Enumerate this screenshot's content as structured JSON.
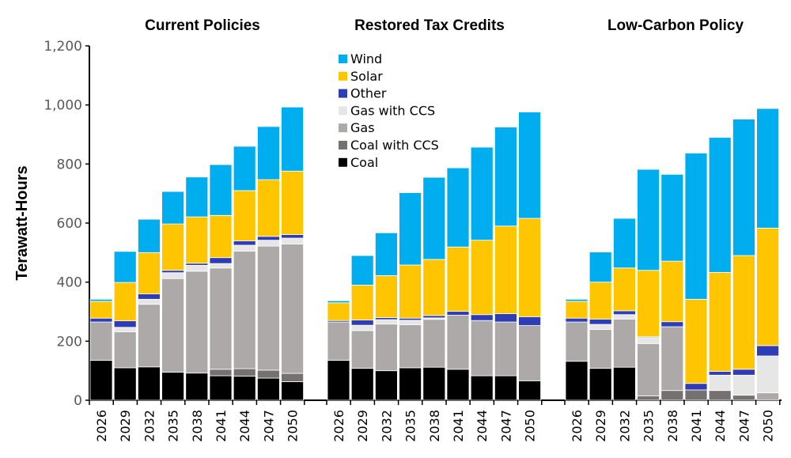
{
  "chart_data": {
    "type": "bar",
    "stacked": true,
    "ylabel": "Terawatt-Hours",
    "ylim": [
      0,
      1200
    ],
    "yticks": [
      0,
      200,
      400,
      600,
      800,
      1000,
      1200
    ],
    "ytick_labels": [
      "0",
      "200",
      "400",
      "600",
      "800",
      "1,000",
      "1,200"
    ],
    "grid": false,
    "legend_position": "top-center (inside middle panel)",
    "categories": [
      "2026",
      "2029",
      "2032",
      "2035",
      "2038",
      "2041",
      "2044",
      "2047",
      "2050"
    ],
    "series_order": [
      "Coal",
      "Coal with CCS",
      "Gas",
      "Gas with CCS",
      "Other",
      "Solar",
      "Wind"
    ],
    "legend": [
      {
        "name": "Wind",
        "color": "#00AEEF"
      },
      {
        "name": "Solar",
        "color": "#FFC600"
      },
      {
        "name": "Other",
        "color": "#2E3DB5"
      },
      {
        "name": "Gas with CCS",
        "color": "#E6E6E6"
      },
      {
        "name": "Gas",
        "color": "#ADA9A9"
      },
      {
        "name": "Coal with CCS",
        "color": "#767171"
      },
      {
        "name": "Coal",
        "color": "#000000"
      }
    ],
    "panels": [
      {
        "title": "Current Policies",
        "series": [
          {
            "name": "Coal",
            "values": [
              135,
              110,
              113,
              95,
              92,
              83,
              82,
              75,
              63
            ]
          },
          {
            "name": "Coal with CCS",
            "values": [
              0,
              0,
              0,
              0,
              0,
              22,
              25,
              27,
              28
            ]
          },
          {
            "name": "Gas",
            "values": [
              130,
              122,
              212,
              317,
              345,
              343,
              398,
              420,
              438
            ]
          },
          {
            "name": "Gas with CCS",
            "values": [
              0,
              15,
              17,
              20,
              20,
              15,
              20,
              20,
              20
            ]
          },
          {
            "name": "Other",
            "values": [
              13,
              22,
              18,
              8,
              7,
              20,
              15,
              13,
              12
            ]
          },
          {
            "name": "Solar",
            "values": [
              57,
              130,
              140,
              157,
              157,
              143,
              170,
              192,
              215
            ]
          },
          {
            "name": "Wind",
            "values": [
              7,
              105,
              113,
              110,
              135,
              172,
              150,
              180,
              217
            ]
          }
        ]
      },
      {
        "title": "Restored Tax Credits",
        "series": [
          {
            "name": "Coal",
            "values": [
              135,
              108,
              100,
              110,
              112,
              105,
              83,
              83,
              66
            ]
          },
          {
            "name": "Coal with CCS",
            "values": [
              0,
              0,
              0,
              0,
              0,
              0,
              0,
              0,
              0
            ]
          },
          {
            "name": "Gas",
            "values": [
              130,
              128,
              158,
              146,
              162,
              183,
              187,
              182,
              187
            ]
          },
          {
            "name": "Gas with CCS",
            "values": [
              0,
              18,
              15,
              15,
              5,
              0,
              0,
              0,
              0
            ]
          },
          {
            "name": "Other",
            "values": [
              5,
              18,
              7,
              7,
              8,
              13,
              20,
              28,
              30
            ]
          },
          {
            "name": "Solar",
            "values": [
              60,
              118,
              142,
              180,
              190,
              218,
              252,
              297,
              333
            ]
          },
          {
            "name": "Wind",
            "values": [
              7,
              100,
              145,
              245,
              278,
              268,
              315,
              335,
              360
            ]
          }
        ]
      },
      {
        "title": "Low-Carbon Policy",
        "series": [
          {
            "name": "Coal",
            "values": [
              132,
              108,
              112,
              0,
              0,
              0,
              0,
              0,
              0
            ]
          },
          {
            "name": "Coal with CCS",
            "values": [
              0,
              0,
              0,
              15,
              33,
              35,
              33,
              17,
              0
            ]
          },
          {
            "name": "Gas",
            "values": [
              133,
              132,
              163,
              177,
              216,
              0,
              0,
              0,
              25
            ]
          },
          {
            "name": "Gas with CCS",
            "values": [
              0,
              17,
              15,
              20,
              0,
              0,
              52,
              68,
              125
            ]
          },
          {
            "name": "Other",
            "values": [
              13,
              18,
              13,
              3,
              17,
              22,
              13,
              20,
              35
            ]
          },
          {
            "name": "Solar",
            "values": [
              57,
              125,
              145,
              225,
              205,
              285,
              335,
              385,
              398
            ]
          },
          {
            "name": "Wind",
            "values": [
              7,
              102,
              168,
              342,
              294,
              495,
              457,
              462,
              405
            ]
          }
        ]
      }
    ]
  }
}
